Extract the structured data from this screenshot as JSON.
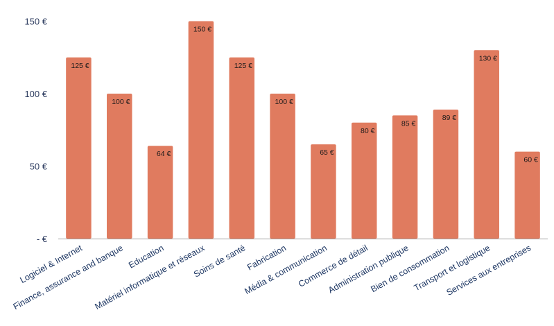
{
  "chart_data": {
    "type": "bar",
    "categories": [
      "Logiciel & Internet",
      "Finance, assurance and banque",
      "Education",
      "Matériel informatique et réseaux",
      "Soins de santé",
      "Fabrication",
      "Média & communication",
      "Commerce de détail",
      "Administration publique",
      "Bien de consommation",
      "Transport et logistique",
      "Services aux entreprises"
    ],
    "values": [
      125,
      100,
      64,
      150,
      125,
      100,
      65,
      80,
      85,
      89,
      130,
      60
    ],
    "data_labels": [
      "125 €",
      "100 €",
      "64 €",
      "150 €",
      "125 €",
      "100 €",
      "65 €",
      "80 €",
      "85 €",
      "89 €",
      "130 €",
      "60 €"
    ],
    "ylim": [
      0,
      150
    ],
    "yticks": [
      0,
      50,
      100,
      150
    ],
    "ytick_labels": [
      "-   €",
      "50 €",
      "100 €",
      "150 €"
    ],
    "grid": false,
    "legend": "none",
    "bar_color": "#e07b5f",
    "axis_color": "#9e9e9e"
  }
}
